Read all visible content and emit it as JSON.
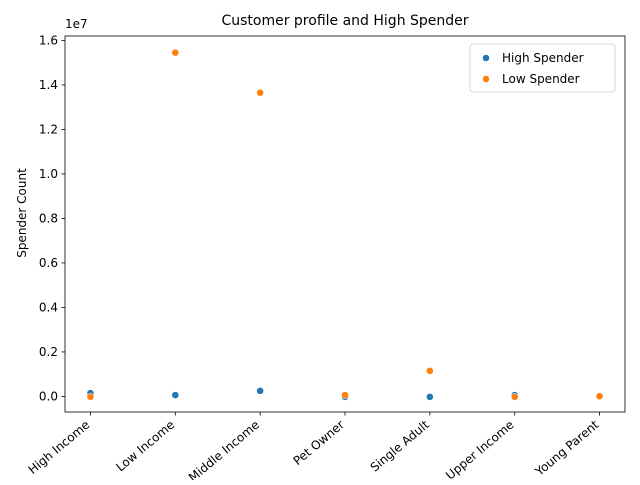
{
  "chart_data": {
    "type": "scatter",
    "title": "Customer profile and High Spender",
    "xlabel": "",
    "ylabel": "Spender Count",
    "y_offset_label": "1e7",
    "categories": [
      "High Income",
      "Low Income",
      "Middle Income",
      "Pet Owner",
      "Single Adult",
      "Upper Income",
      "Young Parent"
    ],
    "ylim": [
      -700000,
      16200000
    ],
    "yticks": [
      0,
      2000000,
      4000000,
      6000000,
      8000000,
      10000000,
      12000000,
      14000000,
      16000000
    ],
    "ytick_labels": [
      "0.0",
      "0.2",
      "0.4",
      "0.6",
      "0.8",
      "1.0",
      "1.2",
      "1.4",
      "1.6"
    ],
    "series": [
      {
        "name": "High Spender",
        "color": "#1f77b4",
        "values": [
          150000,
          60000,
          250000,
          -20000,
          -20000,
          60000,
          10000
        ]
      },
      {
        "name": "Low Spender",
        "color": "#ff7f0e",
        "values": [
          -20000,
          15450000,
          13650000,
          60000,
          1150000,
          -20000,
          10000
        ]
      }
    ],
    "legend_position": "top-right",
    "grid": false
  }
}
